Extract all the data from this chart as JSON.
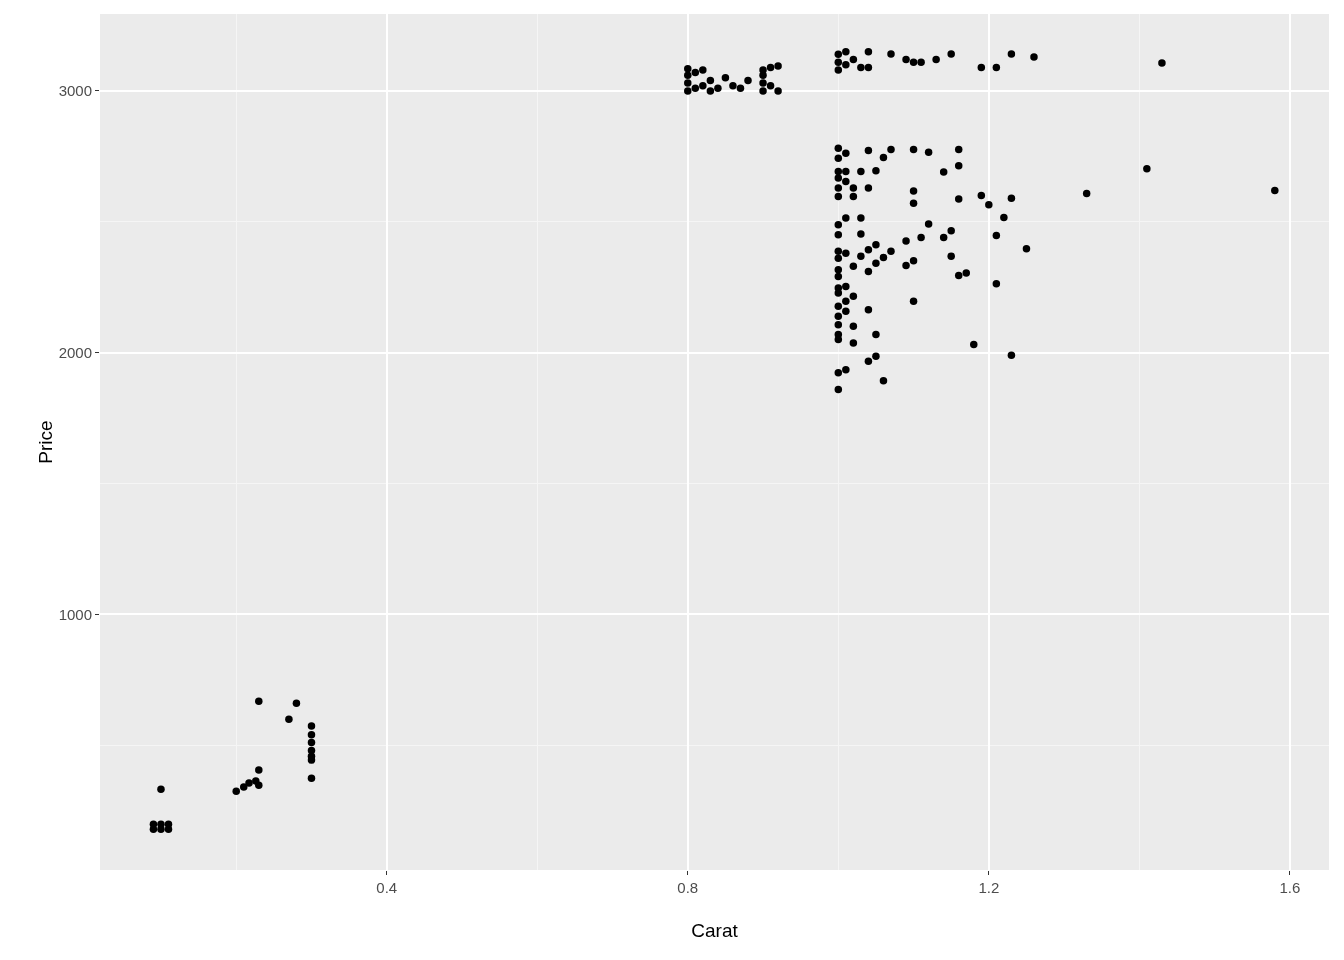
{
  "chart_data": {
    "type": "scatter",
    "xlabel": "Carat",
    "ylabel": "Price",
    "marker": "circle",
    "grid": true,
    "xlim": [
      0.019,
      1.652
    ],
    "xticks": [
      0.4,
      0.8,
      1.2,
      1.6
    ],
    "ylim": [
      23,
      3294
    ],
    "yticks": [
      1000,
      2000,
      3000
    ],
    "series": [
      {
        "color": "#000000",
        "x": [
          0.09,
          0.1,
          0.11,
          0.09,
          0.1,
          0.11,
          0.1,
          0.2,
          0.21,
          0.217,
          0.226,
          0.23,
          0.23,
          0.23,
          0.27,
          0.28,
          0.3,
          0.3,
          0.3,
          0.3,
          0.3,
          0.3,
          0.3,
          0.8,
          0.8,
          0.8,
          0.8,
          0.81,
          0.81,
          0.82,
          0.82,
          0.83,
          0.83,
          0.84,
          0.85,
          0.86,
          0.87,
          0.88,
          0.9,
          0.9,
          0.9,
          0.9,
          0.91,
          0.91,
          0.92,
          0.92,
          1.0,
          1.0,
          1.0,
          1.01,
          1.01,
          1.02,
          1.03,
          1.04,
          1.04,
          1.07,
          1.09,
          1.1,
          1.11,
          1.13,
          1.15,
          1.19,
          1.21,
          1.23,
          1.26,
          1.43,
          1.0,
          1.0,
          1.0,
          1.0,
          1.0,
          1.0,
          1.0,
          1.0,
          1.0,
          1.0,
          1.0,
          1.0,
          1.0,
          1.0,
          1.0,
          1.0,
          1.0,
          1.0,
          1.0,
          1.0,
          1.0,
          1.01,
          1.01,
          1.01,
          1.01,
          1.01,
          1.01,
          1.01,
          1.01,
          1.01,
          1.02,
          1.02,
          1.02,
          1.02,
          1.02,
          1.02,
          1.03,
          1.03,
          1.03,
          1.03,
          1.04,
          1.04,
          1.04,
          1.04,
          1.04,
          1.04,
          1.05,
          1.05,
          1.05,
          1.05,
          1.05,
          1.06,
          1.06,
          1.06,
          1.07,
          1.07,
          1.09,
          1.09,
          1.1,
          1.1,
          1.1,
          1.1,
          1.1,
          1.11,
          1.12,
          1.12,
          1.14,
          1.14,
          1.15,
          1.15,
          1.16,
          1.16,
          1.16,
          1.16,
          1.17,
          1.18,
          1.19,
          1.2,
          1.21,
          1.21,
          1.22,
          1.23,
          1.23,
          1.25,
          1.33,
          1.41,
          1.58
        ],
        "values": [
          179,
          179,
          179,
          198,
          198,
          198,
          332,
          324,
          340,
          355,
          363,
          347,
          405,
          668,
          599,
          660,
          573,
          540,
          510,
          480,
          458,
          443,
          374,
          3000,
          3030,
          3060,
          3085,
          3010,
          3070,
          3020,
          3080,
          3000,
          3040,
          3010,
          3050,
          3020,
          3010,
          3040,
          3000,
          3030,
          3060,
          3080,
          3020,
          3090,
          3000,
          3095,
          3080,
          3110,
          3140,
          3100,
          3150,
          3120,
          3090,
          3150,
          3090,
          3141,
          3120,
          3110,
          3110,
          3120,
          3141,
          3090,
          3090,
          3141,
          3130,
          3107,
          2781,
          2743,
          2692,
          2667,
          2629,
          2597,
          2489,
          2450,
          2387,
          2361,
          2317,
          2291,
          2247,
          2228,
          2177,
          2139,
          2107,
          2069,
          2050,
          1923,
          1859,
          2762,
          2692,
          2654,
          2514,
          2380,
          2253,
          2196,
          2158,
          1935,
          2629,
          2597,
          2330,
          2215,
          2101,
          2037,
          2692,
          2514,
          2453,
          2368,
          2772,
          2629,
          2393,
          2310,
          2164,
          1967,
          2695,
          2412,
          2342,
          2069,
          1986,
          2746,
          2364,
          1893,
          2776,
          2387,
          2427,
          2333,
          2776,
          2618,
          2571,
          2351,
          2196,
          2440,
          2766,
          2492,
          2690,
          2440,
          2466,
          2368,
          2776,
          2714,
          2587,
          2295,
          2304,
          2031,
          2600,
          2565,
          2448,
          2263,
          2516,
          2590,
          1990,
          2397,
          2608,
          2703,
          2620
        ]
      }
    ]
  }
}
